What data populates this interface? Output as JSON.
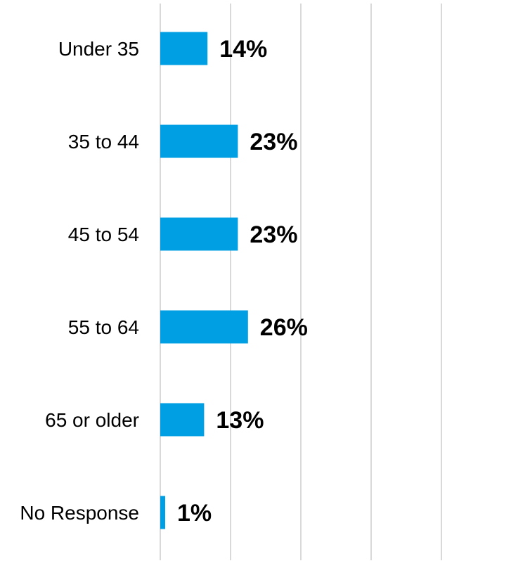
{
  "chart_data": {
    "type": "bar",
    "orientation": "horizontal",
    "categories": [
      "Under 35",
      "35 to 44",
      "45 to 54",
      "55 to 64",
      "65 or older",
      "No Response"
    ],
    "values": [
      14,
      23,
      23,
      26,
      13,
      1
    ],
    "value_labels": [
      "14%",
      "23%",
      "23%",
      "26%",
      "13%",
      "1%"
    ],
    "unit": "%",
    "xlim": [
      0,
      100
    ],
    "grid": true,
    "bar_color": "#009fe3",
    "gridline_color": "#d9d9d9"
  }
}
